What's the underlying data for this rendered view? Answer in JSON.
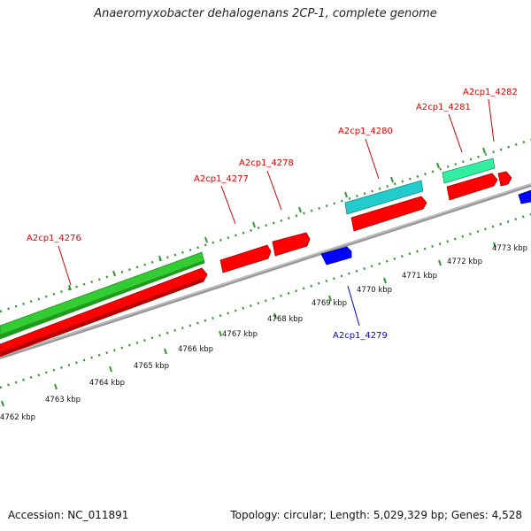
{
  "title": "Anaeromyxobacter dehalogenans 2CP-1, complete genome",
  "footer": {
    "accession": "Accession: NC_011891",
    "summary": "Topology: circular; Length: 5,029,329 bp; Genes: 4,528"
  },
  "colors": {
    "forward_cds": "#ff0000",
    "reverse_cds": "#0000ff",
    "gene_green": "#33cc33",
    "gene_cyan": "#22cccc",
    "gene_mint": "#33eea0",
    "backbone": "#999999",
    "tick": "#339933"
  },
  "ticks": [
    {
      "label": "4762 kbp"
    },
    {
      "label": "4763 kbp"
    },
    {
      "label": "4764 kbp"
    },
    {
      "label": "4765 kbp"
    },
    {
      "label": "4766 kbp"
    },
    {
      "label": "4767 kbp"
    },
    {
      "label": "4768 kbp"
    },
    {
      "label": "4769 kbp"
    },
    {
      "label": "4770 kbp"
    },
    {
      "label": "4771 kbp"
    },
    {
      "label": "4772 kbp"
    },
    {
      "label": "4773 kbp"
    }
  ],
  "genes": [
    {
      "label": "A2cp1_4276",
      "strand": "forward"
    },
    {
      "label": "A2cp1_4277",
      "strand": "forward"
    },
    {
      "label": "A2cp1_4278",
      "strand": "forward"
    },
    {
      "label": "A2cp1_4279",
      "strand": "reverse"
    },
    {
      "label": "A2cp1_4280",
      "strand": "forward"
    },
    {
      "label": "A2cp1_4281",
      "strand": "forward"
    },
    {
      "label": "A2cp1_4282",
      "strand": "forward"
    }
  ]
}
